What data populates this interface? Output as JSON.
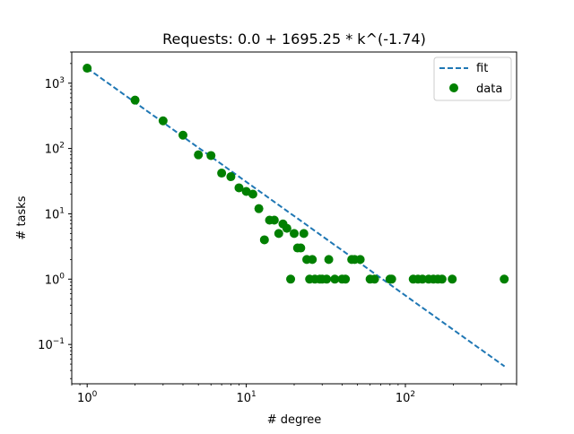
{
  "chart_data": {
    "type": "scatter",
    "title": "Requests: 0.0 + 1695.25 * k^(-1.74)",
    "xlabel": "# degree",
    "ylabel": "# tasks",
    "xscale": "log",
    "yscale": "log",
    "xlim": [
      0.8,
      500
    ],
    "ylim": [
      0.025,
      3000
    ],
    "grid": false,
    "legend_placement": "top-right",
    "x_ticks": [
      {
        "value": 1,
        "base": "10",
        "exp": "0"
      },
      {
        "value": 10,
        "base": "10",
        "exp": "1"
      },
      {
        "value": 100,
        "base": "10",
        "exp": "2"
      }
    ],
    "y_ticks": [
      {
        "value": 0.1,
        "base": "10",
        "exp": "−1"
      },
      {
        "value": 1,
        "base": "10",
        "exp": "0"
      },
      {
        "value": 10,
        "base": "10",
        "exp": "1"
      },
      {
        "value": 100,
        "base": "10",
        "exp": "2"
      },
      {
        "value": 1000,
        "base": "10",
        "exp": "3"
      }
    ],
    "fit": {
      "name": "fit",
      "color": "#1f77b4",
      "style": "dashed",
      "a": 0.0,
      "b": 1695.25,
      "c": -1.74,
      "x_range": [
        1,
        420
      ]
    },
    "data_series": {
      "name": "data",
      "color": "#008000",
      "points": [
        [
          1,
          1695
        ],
        [
          2,
          550
        ],
        [
          3,
          265
        ],
        [
          4,
          160
        ],
        [
          5,
          80
        ],
        [
          6,
          78
        ],
        [
          7,
          42
        ],
        [
          8,
          37
        ],
        [
          9,
          25
        ],
        [
          10,
          22
        ],
        [
          11,
          20
        ],
        [
          12,
          12
        ],
        [
          13,
          4
        ],
        [
          14,
          8
        ],
        [
          15,
          8
        ],
        [
          16,
          5
        ],
        [
          17,
          7
        ],
        [
          18,
          6
        ],
        [
          19,
          1
        ],
        [
          20,
          5
        ],
        [
          21,
          3
        ],
        [
          22,
          3
        ],
        [
          23,
          5
        ],
        [
          24,
          2
        ],
        [
          25,
          1
        ],
        [
          26,
          2
        ],
        [
          27,
          1
        ],
        [
          29,
          1
        ],
        [
          30,
          1
        ],
        [
          32,
          1
        ],
        [
          33,
          2
        ],
        [
          36,
          1
        ],
        [
          40,
          1
        ],
        [
          42,
          1
        ],
        [
          46,
          2
        ],
        [
          48,
          2
        ],
        [
          52,
          2
        ],
        [
          60,
          1
        ],
        [
          64,
          1
        ],
        [
          80,
          1
        ],
        [
          82,
          1
        ],
        [
          112,
          1
        ],
        [
          120,
          1
        ],
        [
          128,
          1
        ],
        [
          140,
          1
        ],
        [
          150,
          1
        ],
        [
          160,
          1
        ],
        [
          170,
          1
        ],
        [
          197,
          1
        ],
        [
          418,
          1
        ]
      ]
    }
  }
}
